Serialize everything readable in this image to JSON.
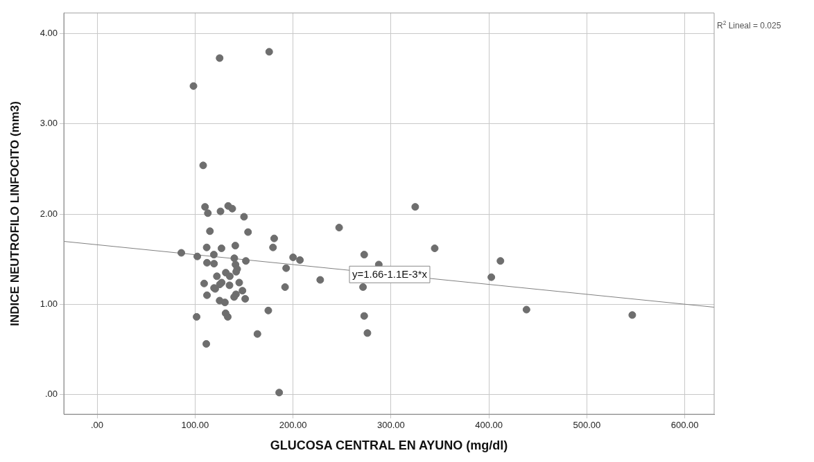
{
  "chart_data": {
    "type": "scatter",
    "xlabel": "GLUCOSA CENTRAL EN AYUNO (mg/dl)",
    "ylabel": "INDICE NEUTROFILO LINFOCITO (mm3)",
    "xlim": [
      -34,
      630
    ],
    "ylim": [
      -0.22,
      4.23
    ],
    "xticks": [
      {
        "value": 0,
        "label": ".00"
      },
      {
        "value": 100,
        "label": "100.00"
      },
      {
        "value": 200,
        "label": "200.00"
      },
      {
        "value": 300,
        "label": "300.00"
      },
      {
        "value": 400,
        "label": "400.00"
      },
      {
        "value": 500,
        "label": "500.00"
      },
      {
        "value": 600,
        "label": "600.00"
      }
    ],
    "yticks": [
      {
        "value": 0,
        "label": ".00"
      },
      {
        "value": 1,
        "label": "1.00"
      },
      {
        "value": 2,
        "label": "2.00"
      },
      {
        "value": 3,
        "label": "3.00"
      },
      {
        "value": 4,
        "label": "4.00"
      }
    ],
    "grid": true,
    "legend": false,
    "marker": "circle",
    "series": [
      {
        "type": "scatter",
        "color": "#6e6e6e",
        "x": [
          108.3,
          110.2,
          113.1,
          126.0,
          133.8,
          138.0,
          150.0,
          115.2,
          154.1,
          111.9,
          127.0,
          141.1,
          86.0,
          102.3,
          119.2,
          140.1,
          151.9,
          112.2,
          119.4,
          141.3,
          143.0,
          142.0,
          131.4,
          135.5,
          122.3,
          145.1,
          127.2,
          125.3,
          135.2,
          109.3,
          119.4,
          120.6,
          148.4,
          141.8,
          139.9,
          151.2,
          112.2,
          125.1,
          130.5,
          101.6,
          131.2,
          133.4,
          163.7,
          125.1,
          98.4,
          175.7,
          111.5,
          324.8,
          247.1,
          180.8,
          179.6,
          344.7,
          200.1,
          207.1,
          272.7,
          411.8,
          287.6,
          193.0,
          227.8,
          402.5,
          191.9,
          271.5,
          174.8,
          438.4,
          546.4,
          272.7,
          276.0,
          185.9
        ],
        "values": [
          2.54,
          2.08,
          2.01,
          2.03,
          2.09,
          2.06,
          1.97,
          1.81,
          1.8,
          1.63,
          1.62,
          1.65,
          1.57,
          1.53,
          1.55,
          1.51,
          1.48,
          1.46,
          1.45,
          1.44,
          1.39,
          1.36,
          1.35,
          1.31,
          1.31,
          1.24,
          1.24,
          1.22,
          1.21,
          1.23,
          1.18,
          1.17,
          1.15,
          1.11,
          1.08,
          1.06,
          1.1,
          1.04,
          1.02,
          0.86,
          0.9,
          0.86,
          0.67,
          3.73,
          3.42,
          3.8,
          0.56,
          2.08,
          1.85,
          1.73,
          1.63,
          1.62,
          1.52,
          1.49,
          1.55,
          1.48,
          1.44,
          1.4,
          1.27,
          1.3,
          1.19,
          1.19,
          0.93,
          0.94,
          0.88,
          0.87,
          0.68,
          0.02
        ]
      },
      {
        "type": "line",
        "color": "#808080",
        "marker": "none",
        "x": [
          -34,
          630
        ],
        "values": [
          1.697,
          0.967
        ]
      }
    ],
    "annotations": [
      {
        "text": "y=1.66-1.1E-3*x",
        "x": 298.7,
        "y": 1.33
      },
      "R$^{2}$ Lineal = 0.025"
    ]
  }
}
